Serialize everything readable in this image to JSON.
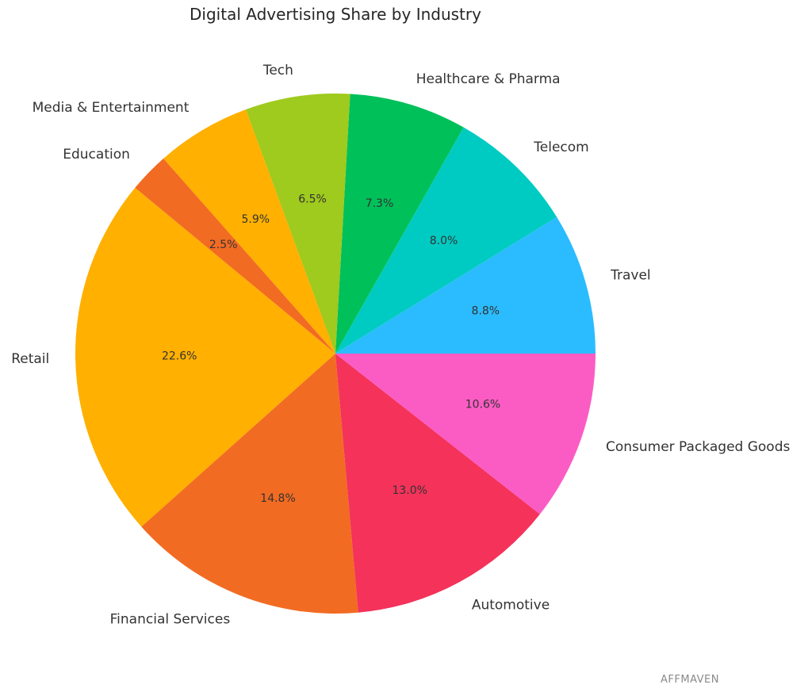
{
  "title": "Digital Advertising Share by Industry",
  "watermark": "AFFMAVEN",
  "chart_data": {
    "type": "pie",
    "title": "Digital Advertising Share by Industry",
    "start": "east (0°), counter-clockwise",
    "slices": [
      {
        "label": "Travel",
        "value": 8.8,
        "pct_label": "8.8%",
        "color": "#2bbcff"
      },
      {
        "label": "Telecom",
        "value": 8.0,
        "pct_label": "8.0%",
        "color": "#00cbc2"
      },
      {
        "label": "Healthcare & Pharma",
        "value": 7.3,
        "pct_label": "7.3%",
        "color": "#00c05a"
      },
      {
        "label": "Tech",
        "value": 6.5,
        "pct_label": "6.5%",
        "color": "#9fca1e"
      },
      {
        "label": "Media & Entertainment",
        "value": 5.9,
        "pct_label": "5.9%",
        "color": "#ffb000"
      },
      {
        "label": "Education",
        "value": 2.5,
        "pct_label": "2.5%",
        "color": "#f26b22"
      },
      {
        "label": "Retail",
        "value": 22.6,
        "pct_label": "22.6%",
        "color": "#ffb000"
      },
      {
        "label": "Financial Services",
        "value": 14.8,
        "pct_label": "14.8%",
        "color": "#f26b22"
      },
      {
        "label": "Automotive",
        "value": 13.0,
        "pct_label": "13.0%",
        "color": "#f4325a"
      },
      {
        "label": "Consumer Packaged Goods",
        "value": 10.6,
        "pct_label": "10.6%",
        "color": "#fb5cc4"
      }
    ]
  }
}
